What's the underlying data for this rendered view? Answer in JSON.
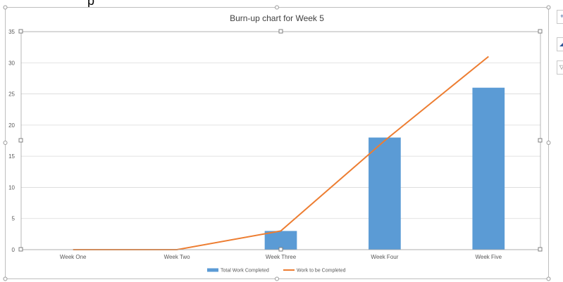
{
  "header_fragment": "p",
  "chart_data": {
    "type": "bar",
    "title": "Burn-up chart for Week 5",
    "categories": [
      "Week One",
      "Week Two",
      "Week Three",
      "Week Four",
      "Week Five"
    ],
    "series": [
      {
        "name": "Total Work Completed",
        "type": "bar",
        "values": [
          0,
          0,
          3,
          18,
          26
        ]
      },
      {
        "name": "Work to be Completed",
        "type": "line",
        "values": [
          0,
          0,
          3,
          17.5,
          31
        ]
      }
    ],
    "ylim": [
      0,
      35
    ],
    "yticks": [
      0,
      5,
      10,
      15,
      20,
      25,
      30,
      35
    ],
    "grid": true,
    "legend_position": "bottom",
    "colors": {
      "bar": "#5B9BD5",
      "line": "#ED7D31",
      "grid": "#D9D9D9"
    }
  }
}
